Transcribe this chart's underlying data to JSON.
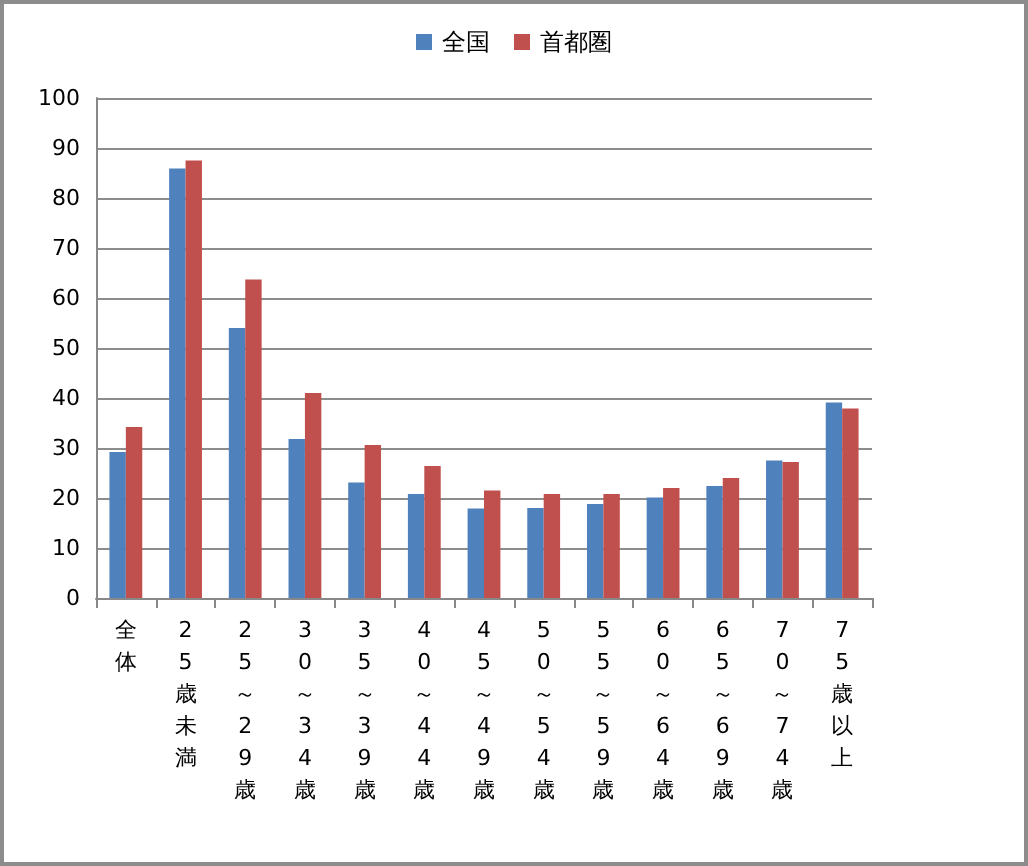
{
  "chart_data": {
    "type": "bar",
    "categories": [
      "全体",
      "25歳未満",
      "25～29歳",
      "30～34歳",
      "35～39歳",
      "40～44歳",
      "45～49歳",
      "50～54歳",
      "55～59歳",
      "60～64歳",
      "65～69歳",
      "70～74歳",
      "75歳以上"
    ],
    "series": [
      {
        "name": "全国",
        "color": "#4f81bd",
        "values": [
          29.2,
          85.9,
          54.0,
          31.8,
          23.1,
          20.8,
          17.9,
          18.0,
          18.8,
          20.1,
          22.4,
          27.5,
          39.1
        ]
      },
      {
        "name": "首都圏",
        "color": "#c0504d",
        "values": [
          34.2,
          87.5,
          63.7,
          41.0,
          30.6,
          26.4,
          21.5,
          20.8,
          20.8,
          22.0,
          24.0,
          27.2,
          37.9
        ]
      }
    ],
    "ylim": [
      0,
      100
    ],
    "yticks": [
      0,
      10,
      20,
      30,
      40,
      50,
      60,
      70,
      80,
      90,
      100
    ],
    "grid": "y",
    "legend": "top"
  }
}
